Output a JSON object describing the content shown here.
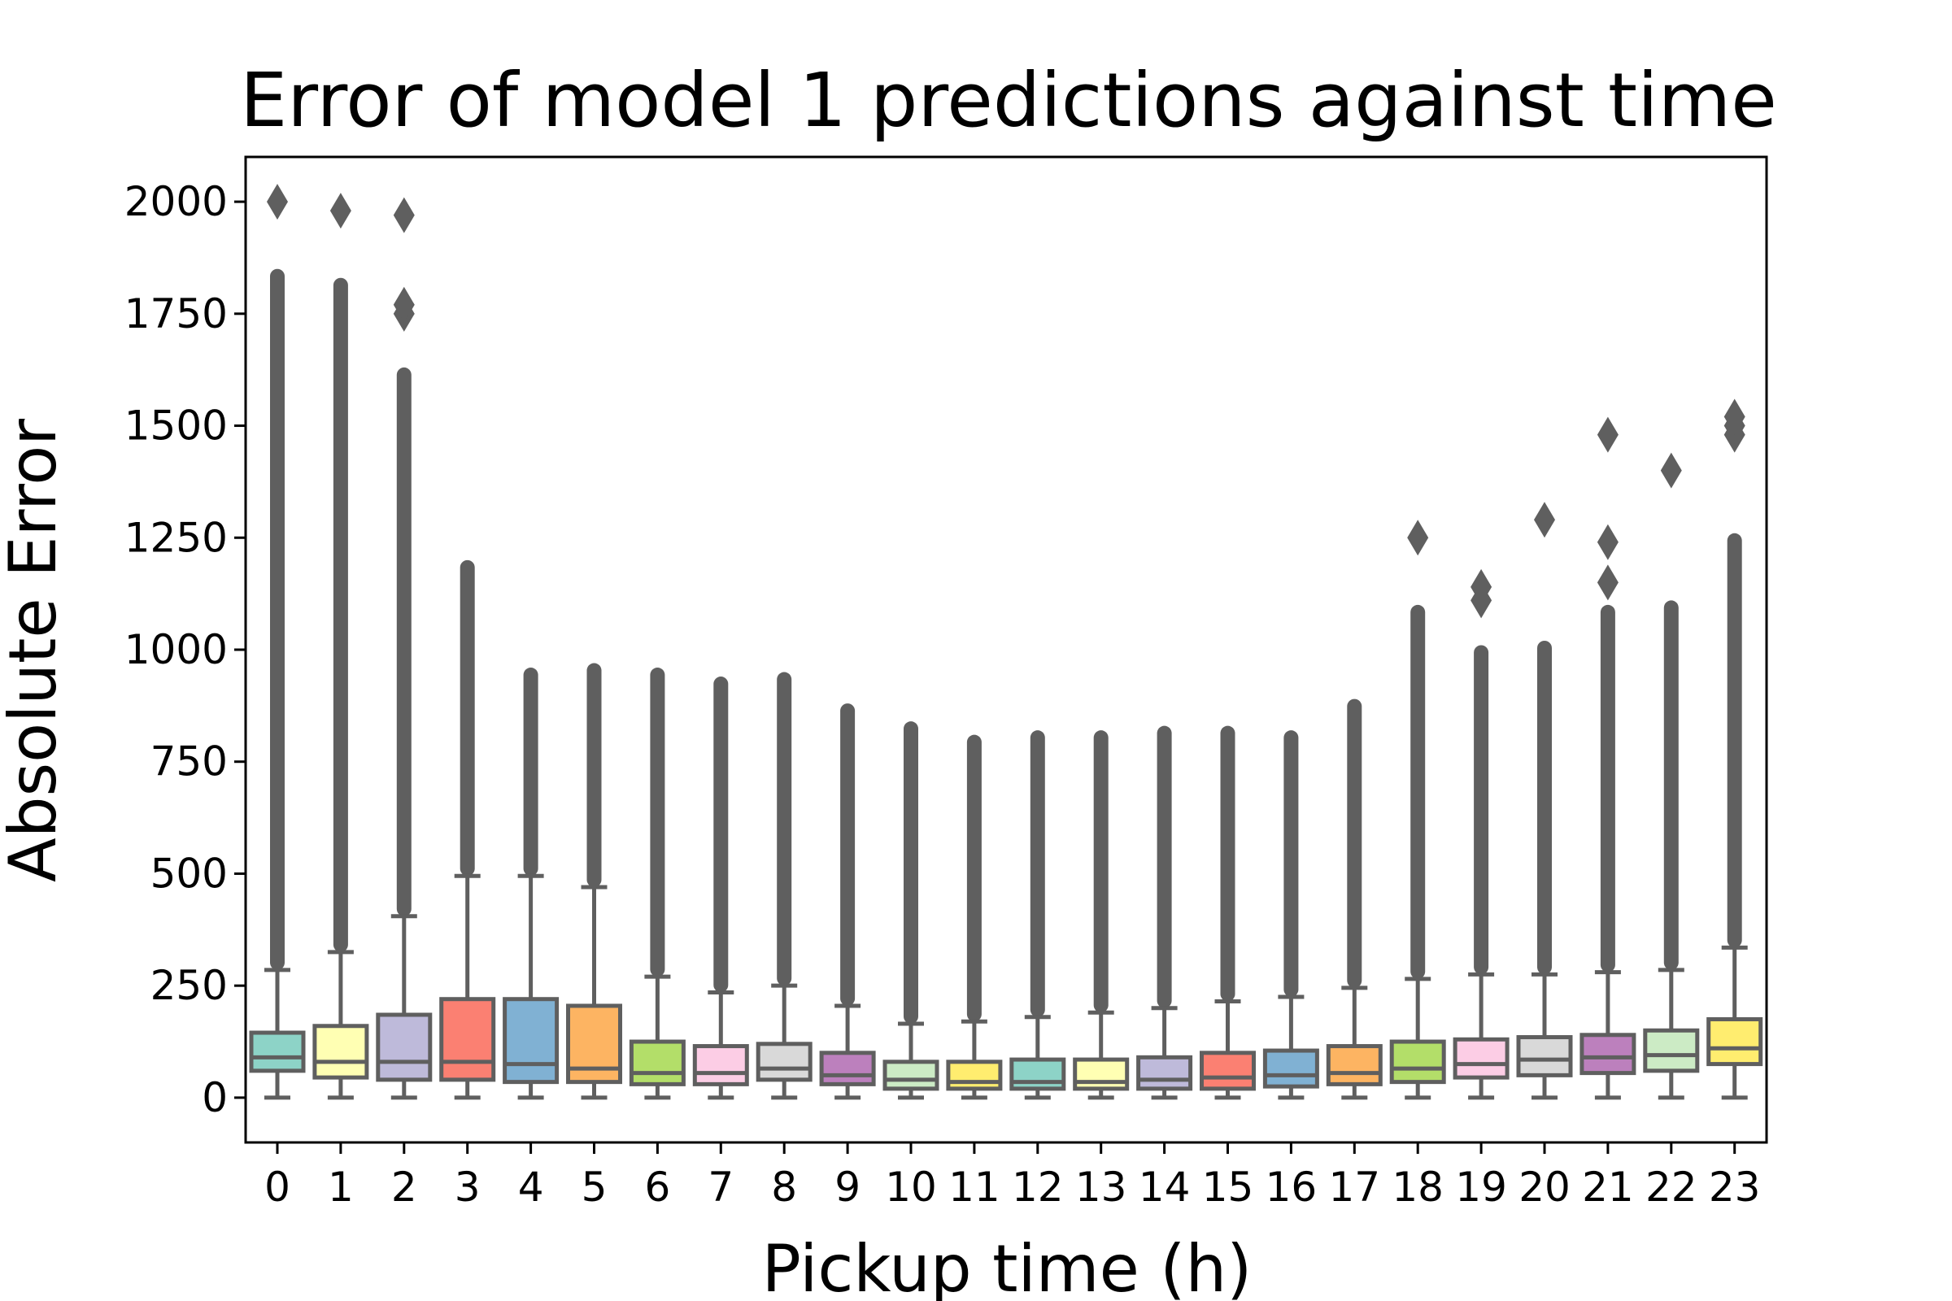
{
  "chart_data": {
    "type": "box",
    "title": "Error of model 1 predictions against time",
    "xlabel": "Pickup time (h)",
    "ylabel": "Absolute Error",
    "ylim": [
      -100,
      2100
    ],
    "yticks": [
      0,
      250,
      500,
      750,
      1000,
      1250,
      1500,
      1750,
      2000
    ],
    "categories": [
      "0",
      "1",
      "2",
      "3",
      "4",
      "5",
      "6",
      "7",
      "8",
      "9",
      "10",
      "11",
      "12",
      "13",
      "14",
      "15",
      "16",
      "17",
      "18",
      "19",
      "20",
      "21",
      "22",
      "23"
    ],
    "boxes": [
      {
        "q1": 60,
        "median": 90,
        "q3": 145,
        "whisker_low": 0,
        "whisker_high": 285,
        "outlier_dense_top": 1850,
        "outliers": [
          2000
        ]
      },
      {
        "q1": 45,
        "median": 80,
        "q3": 160,
        "whisker_low": 0,
        "whisker_high": 325,
        "outlier_dense_top": 1830,
        "outliers": [
          1980
        ]
      },
      {
        "q1": 40,
        "median": 80,
        "q3": 185,
        "whisker_low": 0,
        "whisker_high": 405,
        "outlier_dense_top": 1630,
        "outliers": [
          1750,
          1770,
          1970
        ]
      },
      {
        "q1": 40,
        "median": 80,
        "q3": 220,
        "whisker_low": 0,
        "whisker_high": 495,
        "outlier_dense_top": 1200,
        "outliers": []
      },
      {
        "q1": 35,
        "median": 75,
        "q3": 220,
        "whisker_low": 0,
        "whisker_high": 495,
        "outlier_dense_top": 960,
        "outliers": []
      },
      {
        "q1": 35,
        "median": 65,
        "q3": 205,
        "whisker_low": 0,
        "whisker_high": 470,
        "outlier_dense_top": 970,
        "outliers": []
      },
      {
        "q1": 30,
        "median": 55,
        "q3": 125,
        "whisker_low": 0,
        "whisker_high": 270,
        "outlier_dense_top": 960,
        "outliers": []
      },
      {
        "q1": 30,
        "median": 55,
        "q3": 115,
        "whisker_low": 0,
        "whisker_high": 235,
        "outlier_dense_top": 940,
        "outliers": []
      },
      {
        "q1": 40,
        "median": 65,
        "q3": 120,
        "whisker_low": 0,
        "whisker_high": 250,
        "outlier_dense_top": 950,
        "outliers": []
      },
      {
        "q1": 30,
        "median": 50,
        "q3": 100,
        "whisker_low": 0,
        "whisker_high": 205,
        "outlier_dense_top": 880,
        "outliers": []
      },
      {
        "q1": 20,
        "median": 40,
        "q3": 80,
        "whisker_low": 0,
        "whisker_high": 165,
        "outlier_dense_top": 840,
        "outliers": []
      },
      {
        "q1": 20,
        "median": 35,
        "q3": 80,
        "whisker_low": 0,
        "whisker_high": 170,
        "outlier_dense_top": 810,
        "outliers": []
      },
      {
        "q1": 20,
        "median": 35,
        "q3": 85,
        "whisker_low": 0,
        "whisker_high": 180,
        "outlier_dense_top": 820,
        "outliers": []
      },
      {
        "q1": 20,
        "median": 35,
        "q3": 85,
        "whisker_low": 0,
        "whisker_high": 190,
        "outlier_dense_top": 820,
        "outliers": []
      },
      {
        "q1": 20,
        "median": 40,
        "q3": 90,
        "whisker_low": 0,
        "whisker_high": 200,
        "outlier_dense_top": 830,
        "outliers": []
      },
      {
        "q1": 20,
        "median": 45,
        "q3": 100,
        "whisker_low": 0,
        "whisker_high": 215,
        "outlier_dense_top": 830,
        "outliers": []
      },
      {
        "q1": 25,
        "median": 50,
        "q3": 105,
        "whisker_low": 0,
        "whisker_high": 225,
        "outlier_dense_top": 820,
        "outliers": []
      },
      {
        "q1": 30,
        "median": 55,
        "q3": 115,
        "whisker_low": 0,
        "whisker_high": 245,
        "outlier_dense_top": 890,
        "outliers": []
      },
      {
        "q1": 35,
        "median": 65,
        "q3": 125,
        "whisker_low": 0,
        "whisker_high": 265,
        "outlier_dense_top": 1100,
        "outliers": [
          1250
        ]
      },
      {
        "q1": 45,
        "median": 75,
        "q3": 130,
        "whisker_low": 0,
        "whisker_high": 275,
        "outlier_dense_top": 1010,
        "outliers": [
          1110,
          1140
        ]
      },
      {
        "q1": 50,
        "median": 85,
        "q3": 135,
        "whisker_low": 0,
        "whisker_high": 275,
        "outlier_dense_top": 1020,
        "outliers": [
          1290
        ]
      },
      {
        "q1": 55,
        "median": 90,
        "q3": 140,
        "whisker_low": 0,
        "whisker_high": 280,
        "outlier_dense_top": 1100,
        "outliers": [
          1150,
          1240,
          1480
        ]
      },
      {
        "q1": 60,
        "median": 95,
        "q3": 150,
        "whisker_low": 0,
        "whisker_high": 285,
        "outlier_dense_top": 1110,
        "outliers": [
          1400
        ]
      },
      {
        "q1": 75,
        "median": 110,
        "q3": 175,
        "whisker_low": 0,
        "whisker_high": 335,
        "outlier_dense_top": 1260,
        "outliers": [
          1480,
          1500,
          1520
        ]
      }
    ],
    "colors": [
      "#8dd3c7",
      "#ffffb3",
      "#bebada",
      "#fb8072",
      "#80b1d3",
      "#fdb462",
      "#b3de69",
      "#fccde5",
      "#d9d9d9",
      "#bc80bd",
      "#ccebc5",
      "#ffed6f",
      "#8dd3c7",
      "#ffffb3",
      "#bebada",
      "#fb8072",
      "#80b1d3",
      "#fdb462",
      "#b3de69",
      "#fccde5",
      "#d9d9d9",
      "#bc80bd",
      "#ccebc5",
      "#ffed6f"
    ],
    "line_color": "#5f5f5f",
    "grid": false,
    "legend": "none"
  }
}
